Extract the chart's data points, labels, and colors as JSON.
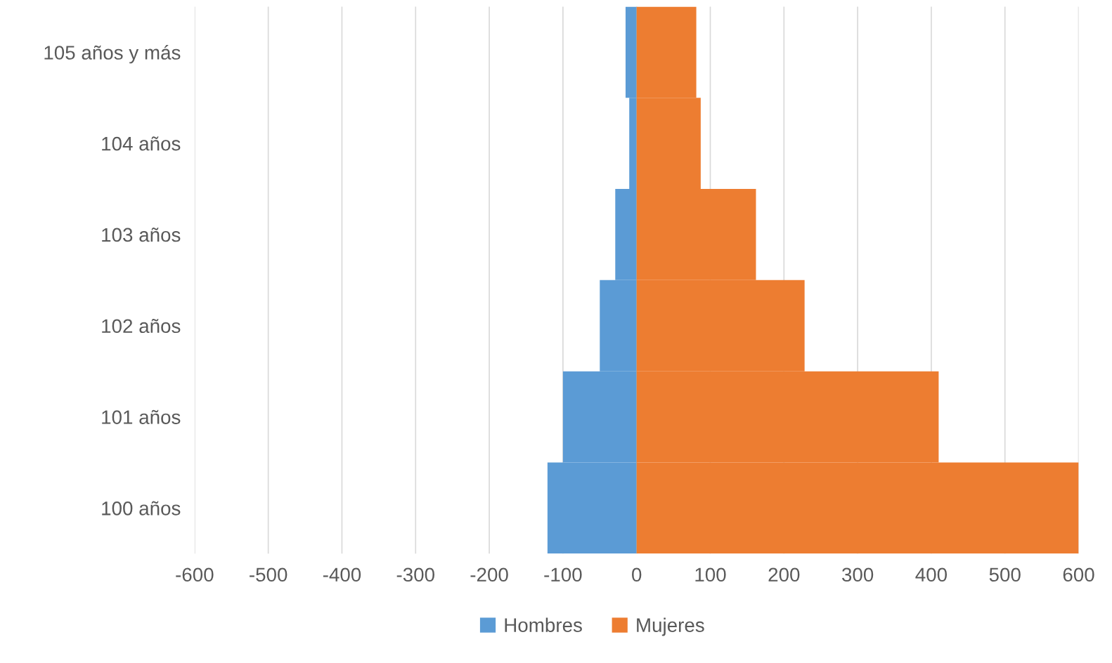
{
  "chart_data": {
    "type": "bar",
    "orientation": "horizontal",
    "categories": [
      "105 años y más",
      "104 años",
      "103 años",
      "102 años",
      "101 años",
      "100 años"
    ],
    "series": [
      {
        "name": "Hombres",
        "color": "#5b9bd5",
        "values": [
          -15,
          -10,
          -29,
          -50,
          -100,
          -121
        ]
      },
      {
        "name": "Mujeres",
        "color": "#ed7d31",
        "values": [
          81,
          87,
          162,
          228,
          410,
          600
        ]
      }
    ],
    "xlim": [
      -600,
      600
    ],
    "xticks": [
      -600,
      -500,
      -400,
      -300,
      -200,
      -100,
      0,
      100,
      200,
      300,
      400,
      500,
      600
    ],
    "stacked": true,
    "grid": "x",
    "legend": "bottom"
  }
}
